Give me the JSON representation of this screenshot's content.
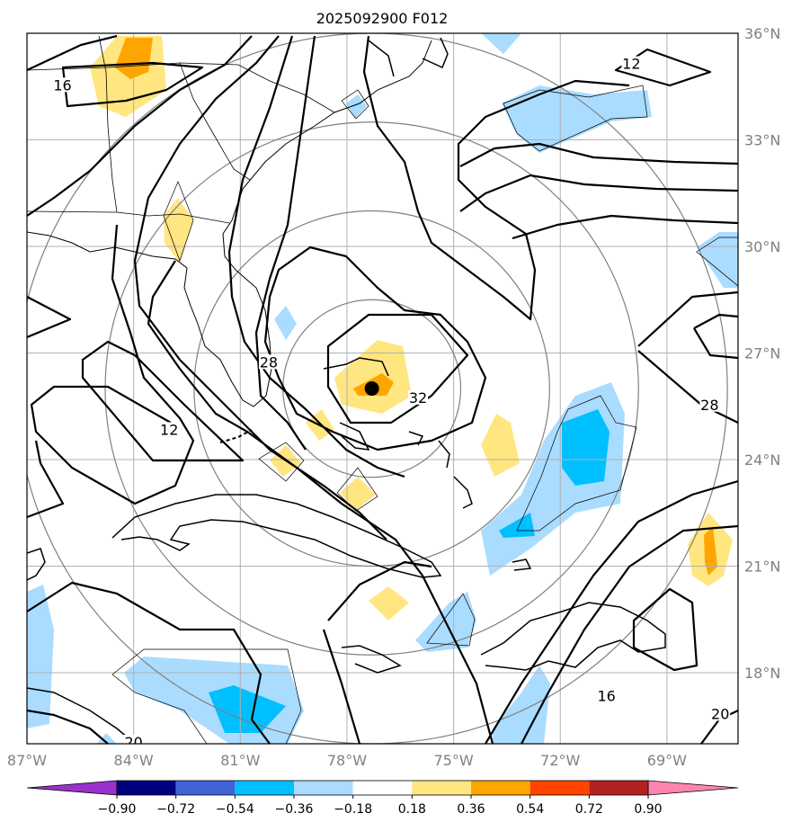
{
  "title": "2025092900 F012",
  "map": {
    "lon_range": [
      -87,
      -67
    ],
    "lat_range": [
      16,
      36
    ],
    "lon_ticks": [
      {
        "value": -87,
        "label": "87°W"
      },
      {
        "value": -84,
        "label": "84°W"
      },
      {
        "value": -81,
        "label": "81°W"
      },
      {
        "value": -78,
        "label": "78°W"
      },
      {
        "value": -75,
        "label": "75°W"
      },
      {
        "value": -72,
        "label": "72°W"
      },
      {
        "value": -69,
        "label": "69°W"
      }
    ],
    "lat_ticks": [
      {
        "value": 36,
        "label": "36°N"
      },
      {
        "value": 33,
        "label": "33°N"
      },
      {
        "value": 30,
        "label": "30°N"
      },
      {
        "value": 27,
        "label": "27°N"
      },
      {
        "value": 24,
        "label": "24°N"
      },
      {
        "value": 21,
        "label": "21°N"
      },
      {
        "value": 18,
        "label": "18°N"
      }
    ],
    "grid": true,
    "storm_center": {
      "lon": -77.3,
      "lat": 26.0
    },
    "range_rings_deg": [
      2.5,
      5,
      7.5,
      10
    ]
  },
  "contour_labels": [
    {
      "text": "16",
      "lon": -86.0,
      "lat": 34.5
    },
    {
      "text": "12",
      "lon": -70.0,
      "lat": 35.1
    },
    {
      "text": "28",
      "lon": -80.2,
      "lat": 26.7
    },
    {
      "text": "32",
      "lon": -76.0,
      "lat": 25.7
    },
    {
      "text": "28",
      "lon": -67.8,
      "lat": 25.5
    },
    {
      "text": "12",
      "lon": -83.0,
      "lat": 24.8
    },
    {
      "text": "16",
      "lon": -70.7,
      "lat": 17.3
    },
    {
      "text": "20",
      "lon": -67.5,
      "lat": 16.8
    },
    {
      "text": "20",
      "lon": -84.0,
      "lat": 16.0
    }
  ],
  "colorbar": {
    "ticks": [
      "−0.90",
      "−0.72",
      "−0.54",
      "−0.36",
      "−0.18",
      "0.18",
      "0.36",
      "0.54",
      "0.72",
      "0.90"
    ],
    "colors": [
      "#9932cc",
      "#000080",
      "#4063d8",
      "#00bfff",
      "#aadcff",
      "#ffffff",
      "#ffe680",
      "#ffa500",
      "#ff4500",
      "#b22222",
      "#ff85b0",
      "#ff85b0"
    ],
    "extend": "both"
  },
  "colors": {
    "light_blue": "#aadcff",
    "blue": "#00bfff",
    "light_yellow": "#ffe680",
    "orange": "#ffa500",
    "grid": "#b0b0b0",
    "ring": "#808080"
  }
}
